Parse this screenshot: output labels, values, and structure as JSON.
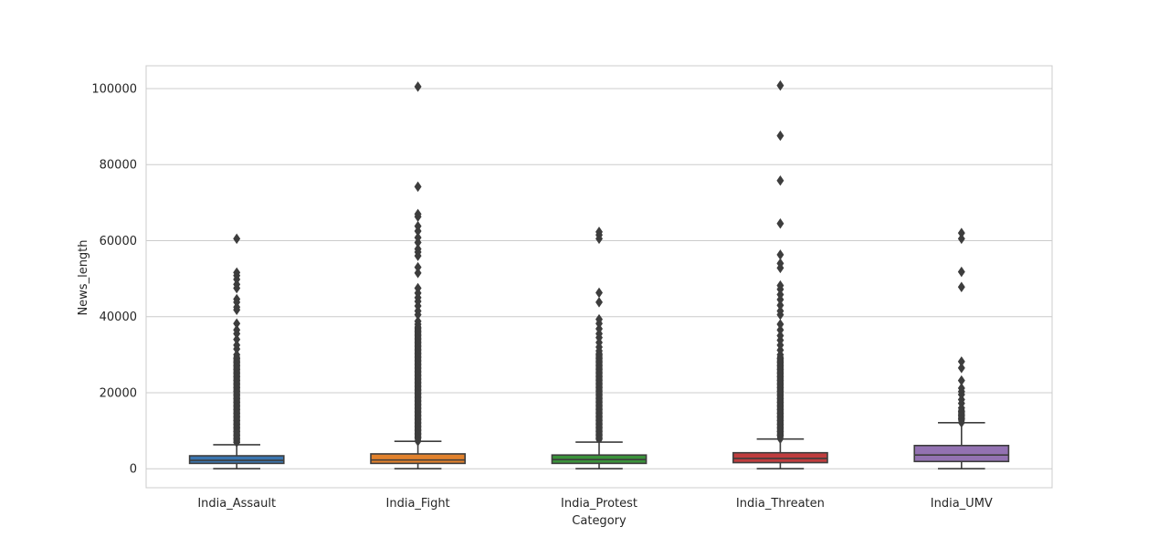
{
  "chart_data": {
    "type": "box",
    "title": "",
    "xlabel": "Category",
    "ylabel": "News_length",
    "ylim": [
      -5000,
      106000
    ],
    "yticks": [
      0,
      20000,
      40000,
      60000,
      80000,
      100000
    ],
    "yticklabels": [
      "0",
      "20000",
      "40000",
      "60000",
      "80000",
      "100000"
    ],
    "grid": "horizontal",
    "categories": [
      "India_Assault",
      "India_Fight",
      "India_Protest",
      "India_Threaten",
      "India_UMV"
    ],
    "series": [
      {
        "category": "India_Assault",
        "color": "#3a75af",
        "whisker_low": 0,
        "q1": 1400,
        "median": 2200,
        "q3": 3400,
        "whisker_high": 6300,
        "outliers_dense_range": [
          6300,
          30000
        ],
        "outliers": [
          31500,
          32500,
          34000,
          35500,
          36500,
          38200,
          41800,
          42500,
          43800,
          44600,
          47500,
          48500,
          49800,
          50800,
          51600,
          60500
        ]
      },
      {
        "category": "India_Fight",
        "color": "#e1812c",
        "whisker_low": 0,
        "q1": 1400,
        "median": 2300,
        "q3": 3900,
        "whisker_high": 7200,
        "outliers_dense_range": [
          7200,
          38000
        ],
        "outliers": [
          38800,
          40500,
          41500,
          42800,
          44000,
          45000,
          46200,
          47500,
          51500,
          53000,
          56000,
          57000,
          57800,
          59500,
          60800,
          62500,
          63800,
          66300,
          67000,
          74200,
          100500
        ]
      },
      {
        "category": "India_Protest",
        "color": "#3a923a",
        "whisker_low": 0,
        "q1": 1400,
        "median": 2400,
        "q3": 3600,
        "whisker_high": 7000,
        "outliers_dense_range": [
          7000,
          31000
        ],
        "outliers": [
          32000,
          33200,
          34500,
          35500,
          36800,
          38200,
          39300,
          43800,
          46300,
          60500,
          61500,
          62300
        ]
      },
      {
        "category": "India_Threaten",
        "color": "#c03d3e",
        "whisker_low": 0,
        "q1": 1600,
        "median": 2700,
        "q3": 4200,
        "whisker_high": 7800,
        "outliers_dense_range": [
          7800,
          30000
        ],
        "outliers": [
          31200,
          32500,
          33800,
          35000,
          36500,
          38000,
          40500,
          41500,
          43000,
          44500,
          45800,
          47200,
          48200,
          52800,
          54000,
          56300,
          64500,
          75800,
          87600,
          100800
        ]
      },
      {
        "category": "India_UMV",
        "color": "#9372b2",
        "whisker_low": 0,
        "q1": 1900,
        "median": 3600,
        "q3": 6100,
        "whisker_high": 12100,
        "outliers_dense_range": [
          12100,
          16000
        ],
        "outliers": [
          17200,
          18200,
          19500,
          20300,
          21200,
          23200,
          26500,
          28200,
          47800,
          51800,
          60500,
          62000
        ]
      }
    ]
  }
}
